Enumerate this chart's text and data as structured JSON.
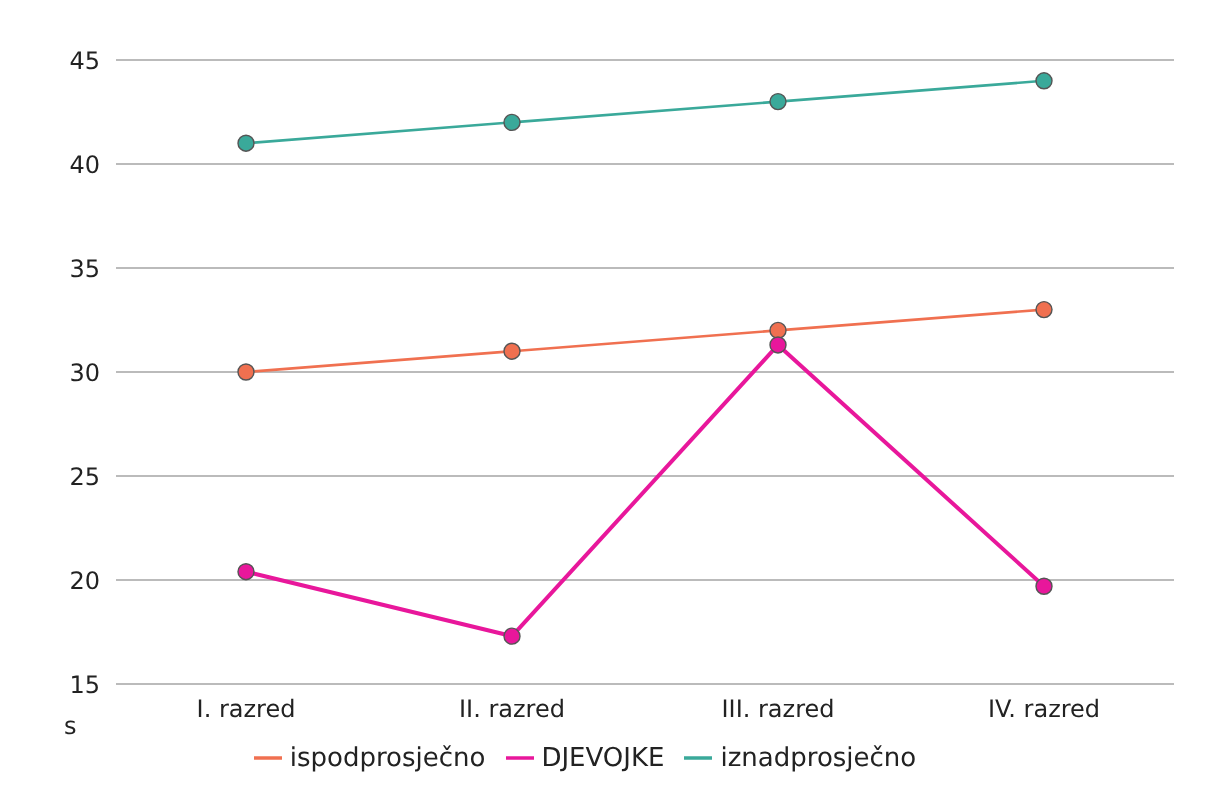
{
  "chart_data": {
    "type": "line",
    "ylabel": "s",
    "categories": [
      "I. razred",
      "II. razred",
      "III. razred",
      "IV. razred"
    ],
    "series": [
      {
        "name": "ispodprosječno",
        "color": "#f07050",
        "values": [
          30,
          31,
          32,
          33
        ]
      },
      {
        "name": "DJEVOJKE",
        "color": "#e8179b",
        "values": [
          20.4,
          17.3,
          31.3,
          19.7
        ]
      },
      {
        "name": "iznadprosječno",
        "color": "#3aa99a",
        "values": [
          41,
          42,
          43,
          44
        ]
      }
    ],
    "ylim": [
      15,
      45
    ],
    "yticks": [
      15,
      20,
      25,
      30,
      35,
      40,
      45
    ],
    "grid": "y",
    "legend": "bottom",
    "marker": "circle",
    "line_style": "solid"
  }
}
